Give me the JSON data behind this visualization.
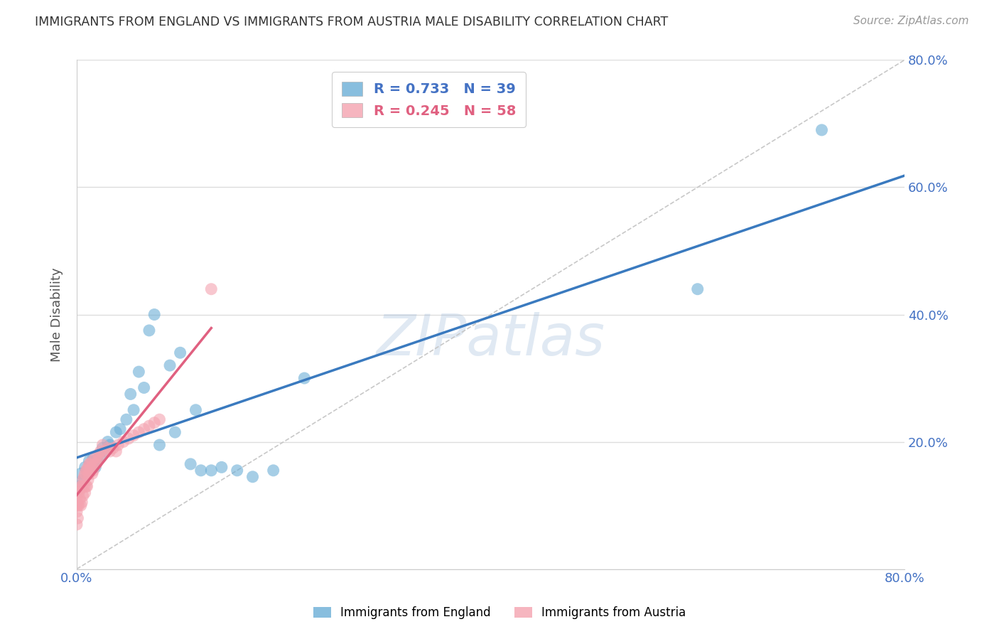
{
  "title": "IMMIGRANTS FROM ENGLAND VS IMMIGRANTS FROM AUSTRIA MALE DISABILITY CORRELATION CHART",
  "source": "Source: ZipAtlas.com",
  "ylabel": "Male Disability",
  "xlim": [
    0.0,
    0.8
  ],
  "ylim": [
    0.0,
    0.8
  ],
  "color_england": "#6baed6",
  "color_austria": "#f4a3b0",
  "line_england": "#3a7abf",
  "line_austria": "#e06080",
  "legend_england": "Immigrants from England",
  "legend_austria": "Immigrants from Austria",
  "R_england": 0.733,
  "N_england": 39,
  "R_austria": 0.245,
  "N_austria": 58,
  "watermark": "ZIPatlas",
  "england_x": [
    0.002,
    0.004,
    0.006,
    0.008,
    0.01,
    0.012,
    0.014,
    0.016,
    0.018,
    0.02,
    0.022,
    0.025,
    0.028,
    0.03,
    0.032,
    0.038,
    0.042,
    0.048,
    0.052,
    0.055,
    0.06,
    0.065,
    0.07,
    0.075,
    0.08,
    0.09,
    0.095,
    0.1,
    0.11,
    0.115,
    0.12,
    0.13,
    0.14,
    0.155,
    0.17,
    0.19,
    0.22,
    0.6,
    0.72
  ],
  "england_y": [
    0.13,
    0.15,
    0.14,
    0.16,
    0.155,
    0.17,
    0.165,
    0.175,
    0.16,
    0.17,
    0.175,
    0.19,
    0.185,
    0.2,
    0.195,
    0.215,
    0.22,
    0.235,
    0.275,
    0.25,
    0.31,
    0.285,
    0.375,
    0.4,
    0.195,
    0.32,
    0.215,
    0.34,
    0.165,
    0.25,
    0.155,
    0.155,
    0.16,
    0.155,
    0.145,
    0.155,
    0.3,
    0.44,
    0.69
  ],
  "austria_x": [
    0.0,
    0.0,
    0.0,
    0.0,
    0.0,
    0.001,
    0.001,
    0.002,
    0.002,
    0.003,
    0.003,
    0.004,
    0.004,
    0.005,
    0.005,
    0.006,
    0.006,
    0.007,
    0.007,
    0.008,
    0.008,
    0.009,
    0.009,
    0.01,
    0.01,
    0.011,
    0.011,
    0.012,
    0.012,
    0.013,
    0.013,
    0.014,
    0.015,
    0.015,
    0.016,
    0.017,
    0.018,
    0.019,
    0.02,
    0.021,
    0.022,
    0.023,
    0.025,
    0.027,
    0.03,
    0.032,
    0.035,
    0.038,
    0.04,
    0.045,
    0.05,
    0.055,
    0.06,
    0.065,
    0.07,
    0.075,
    0.08,
    0.13
  ],
  "austria_y": [
    0.07,
    0.09,
    0.1,
    0.11,
    0.12,
    0.08,
    0.1,
    0.1,
    0.12,
    0.11,
    0.125,
    0.1,
    0.13,
    0.105,
    0.13,
    0.115,
    0.14,
    0.13,
    0.145,
    0.12,
    0.15,
    0.13,
    0.155,
    0.13,
    0.155,
    0.14,
    0.16,
    0.15,
    0.165,
    0.155,
    0.165,
    0.16,
    0.15,
    0.17,
    0.155,
    0.165,
    0.175,
    0.165,
    0.17,
    0.18,
    0.175,
    0.185,
    0.195,
    0.185,
    0.19,
    0.185,
    0.19,
    0.185,
    0.195,
    0.2,
    0.205,
    0.21,
    0.215,
    0.22,
    0.225,
    0.23,
    0.235,
    0.44
  ]
}
